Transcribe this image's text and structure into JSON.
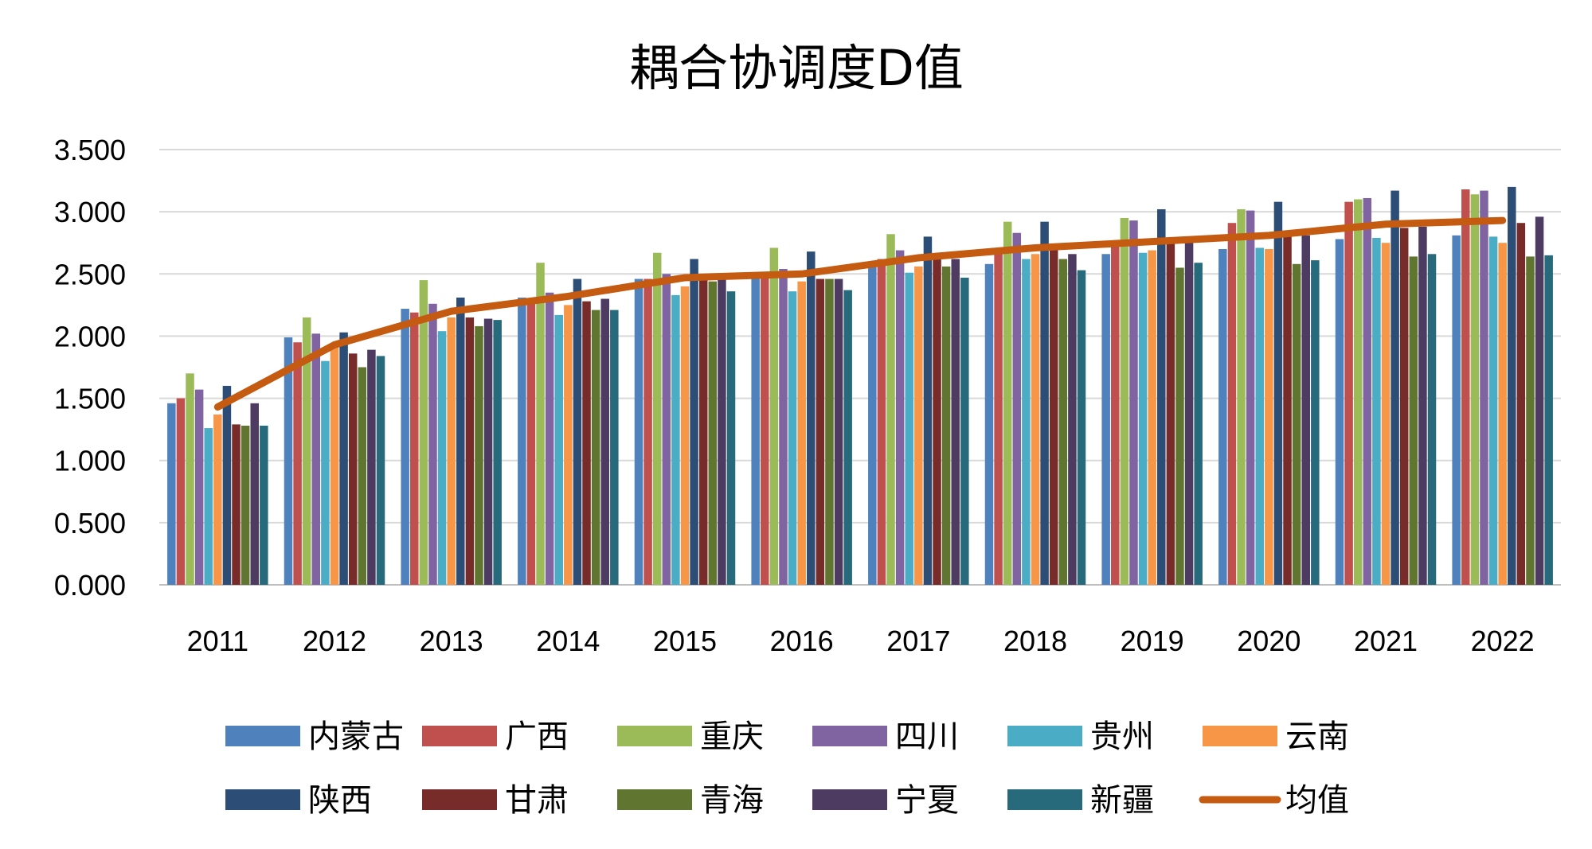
{
  "chart_data": {
    "type": "bar",
    "title": "耦合协调度D值",
    "xlabel": "",
    "ylabel": "",
    "ylim": [
      0,
      3.5
    ],
    "y_ticks": [
      "0.000",
      "0.500",
      "1.000",
      "1.500",
      "2.000",
      "2.500",
      "3.000",
      "3.500"
    ],
    "categories": [
      "2011",
      "2012",
      "2013",
      "2014",
      "2015",
      "2016",
      "2017",
      "2018",
      "2019",
      "2020",
      "2021",
      "2022"
    ],
    "grid": true,
    "legend_position": "bottom",
    "series": [
      {
        "name": "内蒙古",
        "color": "#4F81BD",
        "values": [
          1.46,
          1.99,
          2.22,
          2.31,
          2.46,
          2.47,
          2.58,
          2.58,
          2.66,
          2.7,
          2.78,
          2.81
        ]
      },
      {
        "name": "广西",
        "color": "#C0504D",
        "values": [
          1.5,
          1.95,
          2.19,
          2.3,
          2.46,
          2.5,
          2.62,
          2.7,
          2.73,
          2.91,
          3.08,
          3.18
        ]
      },
      {
        "name": "重庆",
        "color": "#9BBB59",
        "values": [
          1.7,
          2.15,
          2.45,
          2.59,
          2.67,
          2.71,
          2.82,
          2.92,
          2.95,
          3.02,
          3.1,
          3.14
        ]
      },
      {
        "name": "四川",
        "color": "#8064A2",
        "values": [
          1.57,
          2.02,
          2.26,
          2.35,
          2.5,
          2.54,
          2.69,
          2.83,
          2.93,
          3.01,
          3.11,
          3.17
        ]
      },
      {
        "name": "贵州",
        "color": "#4BACC6",
        "values": [
          1.26,
          1.8,
          2.04,
          2.17,
          2.33,
          2.36,
          2.51,
          2.62,
          2.67,
          2.71,
          2.79,
          2.8
        ]
      },
      {
        "name": "云南",
        "color": "#F79646",
        "values": [
          1.37,
          1.94,
          2.15,
          2.25,
          2.4,
          2.44,
          2.56,
          2.66,
          2.69,
          2.7,
          2.75,
          2.75
        ]
      },
      {
        "name": "陕西",
        "color": "#2C4D75",
        "values": [
          1.6,
          2.03,
          2.31,
          2.46,
          2.62,
          2.68,
          2.8,
          2.92,
          3.02,
          3.08,
          3.17,
          3.2
        ]
      },
      {
        "name": "甘肃",
        "color": "#772C2A",
        "values": [
          1.29,
          1.86,
          2.15,
          2.28,
          2.46,
          2.46,
          2.63,
          2.71,
          2.76,
          2.8,
          2.87,
          2.91
        ]
      },
      {
        "name": "青海",
        "color": "#5F7530",
        "values": [
          1.28,
          1.75,
          2.08,
          2.21,
          2.44,
          2.46,
          2.56,
          2.62,
          2.55,
          2.58,
          2.64,
          2.64
        ]
      },
      {
        "name": "宁夏",
        "color": "#4D3B62",
        "values": [
          1.46,
          1.89,
          2.14,
          2.3,
          2.46,
          2.46,
          2.62,
          2.66,
          2.76,
          2.81,
          2.88,
          2.96
        ]
      },
      {
        "name": "新疆",
        "color": "#276A7C",
        "values": [
          1.28,
          1.84,
          2.13,
          2.21,
          2.36,
          2.37,
          2.47,
          2.53,
          2.59,
          2.61,
          2.66,
          2.65
        ]
      }
    ],
    "line_series": {
      "name": "均值",
      "color": "#C55A11",
      "values": [
        1.43,
        1.93,
        2.2,
        2.32,
        2.47,
        2.5,
        2.63,
        2.71,
        2.76,
        2.81,
        2.9,
        2.93
      ]
    }
  }
}
